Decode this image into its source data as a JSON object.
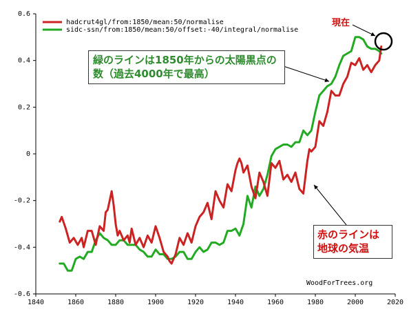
{
  "chart_data": {
    "type": "line",
    "title": "",
    "xlabel": "",
    "ylabel": "",
    "xlim": [
      1840,
      2020
    ],
    "ylim": [
      -0.6,
      0.6
    ],
    "x_ticks": [
      1840,
      1860,
      1880,
      1900,
      1920,
      1940,
      1960,
      1980,
      2000,
      2020
    ],
    "y_ticks": [
      -0.6,
      -0.4,
      -0.2,
      0,
      0.2,
      0.4,
      0.6
    ],
    "x_tick_labels": [
      "1840",
      "1860",
      "1880",
      "1900",
      "1920",
      "1940",
      "1960",
      "1980",
      "2000",
      "2020"
    ],
    "y_tick_labels": [
      "-0.6",
      "-0.4",
      "-0.2",
      "0",
      "0.2",
      "0.4",
      "0.6"
    ],
    "grid": false,
    "legend_position": "top-left",
    "series": [
      {
        "name": "hadcrut4gl/from:1850/mean:50/normalise",
        "color": "#cc2222",
        "x": [
          1852,
          1853,
          1855,
          1857,
          1859,
          1861,
          1863,
          1864,
          1866,
          1868,
          1870,
          1872,
          1874,
          1875,
          1876,
          1877,
          1878,
          1879,
          1880,
          1881,
          1882,
          1884,
          1886,
          1887,
          1888,
          1890,
          1892,
          1894,
          1896,
          1898,
          1900,
          1902,
          1904,
          1906,
          1907,
          1908,
          1909,
          1910,
          1912,
          1914,
          1916,
          1918,
          1920,
          1922,
          1924,
          1926,
          1928,
          1930,
          1932,
          1934,
          1936,
          1938,
          1940,
          1941,
          1942,
          1943,
          1944,
          1946,
          1948,
          1950,
          1952,
          1954,
          1956,
          1958,
          1960,
          1962,
          1964,
          1966,
          1968,
          1970,
          1972,
          1974,
          1975,
          1976,
          1977,
          1978,
          1980,
          1982,
          1984,
          1986,
          1988,
          1990,
          1992,
          1994,
          1996,
          1998,
          2000,
          2002,
          2004,
          2006,
          2008,
          2010,
          2012,
          2013
        ],
        "values": [
          -0.29,
          -0.27,
          -0.32,
          -0.38,
          -0.36,
          -0.39,
          -0.36,
          -0.4,
          -0.33,
          -0.33,
          -0.39,
          -0.31,
          -0.33,
          -0.25,
          -0.24,
          -0.2,
          -0.16,
          -0.22,
          -0.3,
          -0.35,
          -0.33,
          -0.37,
          -0.35,
          -0.38,
          -0.32,
          -0.39,
          -0.36,
          -0.4,
          -0.35,
          -0.38,
          -0.31,
          -0.36,
          -0.42,
          -0.44,
          -0.46,
          -0.47,
          -0.45,
          -0.43,
          -0.36,
          -0.39,
          -0.34,
          -0.38,
          -0.31,
          -0.27,
          -0.25,
          -0.21,
          -0.28,
          -0.16,
          -0.2,
          -0.23,
          -0.13,
          -0.16,
          -0.07,
          -0.04,
          -0.02,
          -0.04,
          -0.08,
          -0.05,
          -0.14,
          -0.19,
          -0.08,
          -0.12,
          -0.18,
          -0.04,
          -0.06,
          -0.03,
          -0.11,
          -0.09,
          -0.12,
          -0.08,
          -0.15,
          -0.17,
          -0.1,
          -0.03,
          0.02,
          0.01,
          0.03,
          0.14,
          0.12,
          0.18,
          0.27,
          0.25,
          0.25,
          0.3,
          0.33,
          0.39,
          0.38,
          0.41,
          0.36,
          0.38,
          0.35,
          0.38,
          0.4,
          0.46
        ]
      },
      {
        "name": "sidc-ssn/from:1850/mean:50/offset:-40/integral/normalise",
        "color": "#22aa22",
        "x": [
          1852,
          1854,
          1856,
          1858,
          1860,
          1862,
          1864,
          1866,
          1868,
          1870,
          1872,
          1874,
          1876,
          1878,
          1880,
          1882,
          1884,
          1886,
          1888,
          1890,
          1892,
          1894,
          1896,
          1898,
          1900,
          1902,
          1904,
          1906,
          1908,
          1910,
          1912,
          1914,
          1916,
          1918,
          1920,
          1922,
          1924,
          1926,
          1928,
          1930,
          1932,
          1934,
          1936,
          1938,
          1940,
          1942,
          1944,
          1946,
          1948,
          1950,
          1952,
          1954,
          1956,
          1958,
          1960,
          1962,
          1964,
          1966,
          1968,
          1970,
          1972,
          1974,
          1976,
          1978,
          1980,
          1982,
          1984,
          1986,
          1988,
          1990,
          1992,
          1994,
          1996,
          1998,
          2000,
          2002,
          2004,
          2006,
          2008,
          2010,
          2012,
          2013
        ],
        "values": [
          -0.47,
          -0.47,
          -0.5,
          -0.5,
          -0.45,
          -0.44,
          -0.45,
          -0.42,
          -0.42,
          -0.37,
          -0.34,
          -0.36,
          -0.37,
          -0.39,
          -0.39,
          -0.37,
          -0.37,
          -0.39,
          -0.39,
          -0.39,
          -0.41,
          -0.42,
          -0.44,
          -0.44,
          -0.41,
          -0.43,
          -0.43,
          -0.45,
          -0.45,
          -0.44,
          -0.42,
          -0.42,
          -0.45,
          -0.45,
          -0.42,
          -0.4,
          -0.42,
          -0.41,
          -0.38,
          -0.38,
          -0.39,
          -0.38,
          -0.33,
          -0.33,
          -0.32,
          -0.35,
          -0.3,
          -0.18,
          -0.23,
          -0.14,
          -0.18,
          -0.15,
          -0.09,
          -0.01,
          0.02,
          0.03,
          0.04,
          0.04,
          0.03,
          0.05,
          0.05,
          0.1,
          0.08,
          0.1,
          0.18,
          0.25,
          0.27,
          0.29,
          0.3,
          0.33,
          0.38,
          0.42,
          0.43,
          0.44,
          0.5,
          0.5,
          0.49,
          0.46,
          0.45,
          0.45,
          0.44,
          0.43
        ]
      }
    ],
    "annotations": {
      "green_note": "緑のラインは1850年からの太陽黒点の数（過去4000年で最高）",
      "red_note": "赤のラインは地球の気温",
      "now_label": "現在"
    },
    "credit": "WoodForTrees.org"
  }
}
